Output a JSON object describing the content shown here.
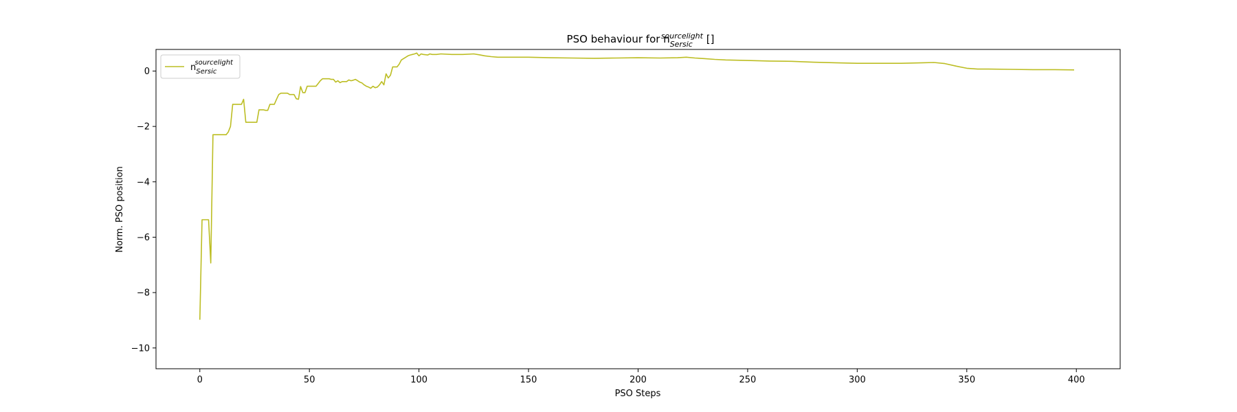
{
  "chart_data": {
    "type": "line",
    "title": {
      "prefix": "PSO behaviour for n",
      "superscript": "sourcelight",
      "subscript": "Sersic",
      "suffix": " []"
    },
    "xlabel": "PSO Steps",
    "ylabel": "Norm. PSO position",
    "xlim": [
      -20,
      420
    ],
    "ylim": [
      -10.75,
      0.78
    ],
    "xticks": [
      0,
      50,
      100,
      150,
      200,
      250,
      300,
      350,
      400
    ],
    "yticks": [
      0,
      -2,
      -4,
      -6,
      -8,
      -10
    ],
    "ytick_labels": [
      "0",
      "−2",
      "−4",
      "−6",
      "−8",
      "−10"
    ],
    "grid": false,
    "legend_position": "upper-left",
    "series": [
      {
        "name": "n",
        "name_superscript": "sourcelight",
        "name_subscript": "Sersic",
        "color": "#bcbd22",
        "points": [
          [
            0,
            -8.98
          ],
          [
            1,
            -5.37
          ],
          [
            2,
            -5.37
          ],
          [
            3,
            -5.37
          ],
          [
            4,
            -5.37
          ],
          [
            5,
            -6.93
          ],
          [
            6,
            -2.3
          ],
          [
            7,
            -2.3
          ],
          [
            8,
            -2.3
          ],
          [
            9,
            -2.3
          ],
          [
            10,
            -2.3
          ],
          [
            11,
            -2.3
          ],
          [
            12,
            -2.3
          ],
          [
            13,
            -2.2
          ],
          [
            14,
            -2.0
          ],
          [
            15,
            -1.2
          ],
          [
            16,
            -1.2
          ],
          [
            17,
            -1.2
          ],
          [
            18,
            -1.2
          ],
          [
            19,
            -1.2
          ],
          [
            20,
            -1.02
          ],
          [
            21,
            -1.85
          ],
          [
            22,
            -1.85
          ],
          [
            23,
            -1.85
          ],
          [
            24,
            -1.85
          ],
          [
            25,
            -1.85
          ],
          [
            26,
            -1.85
          ],
          [
            27,
            -1.4
          ],
          [
            28,
            -1.4
          ],
          [
            29,
            -1.4
          ],
          [
            30,
            -1.42
          ],
          [
            31,
            -1.42
          ],
          [
            32,
            -1.2
          ],
          [
            33,
            -1.2
          ],
          [
            34,
            -1.2
          ],
          [
            35,
            -1.02
          ],
          [
            36,
            -0.85
          ],
          [
            37,
            -0.8
          ],
          [
            38,
            -0.8
          ],
          [
            39,
            -0.8
          ],
          [
            40,
            -0.8
          ],
          [
            41,
            -0.85
          ],
          [
            42,
            -0.85
          ],
          [
            43,
            -0.85
          ],
          [
            44,
            -1.0
          ],
          [
            45,
            -1.02
          ],
          [
            46,
            -0.56
          ],
          [
            47,
            -0.78
          ],
          [
            48,
            -0.78
          ],
          [
            49,
            -0.55
          ],
          [
            50,
            -0.55
          ],
          [
            51,
            -0.55
          ],
          [
            52,
            -0.55
          ],
          [
            53,
            -0.55
          ],
          [
            54,
            -0.45
          ],
          [
            55,
            -0.35
          ],
          [
            56,
            -0.28
          ],
          [
            57,
            -0.28
          ],
          [
            58,
            -0.28
          ],
          [
            59,
            -0.28
          ],
          [
            60,
            -0.3
          ],
          [
            61,
            -0.3
          ],
          [
            62,
            -0.4
          ],
          [
            63,
            -0.35
          ],
          [
            64,
            -0.42
          ],
          [
            65,
            -0.38
          ],
          [
            66,
            -0.38
          ],
          [
            67,
            -0.38
          ],
          [
            68,
            -0.32
          ],
          [
            69,
            -0.35
          ],
          [
            70,
            -0.33
          ],
          [
            71,
            -0.3
          ],
          [
            72,
            -0.35
          ],
          [
            73,
            -0.4
          ],
          [
            74,
            -0.43
          ],
          [
            75,
            -0.5
          ],
          [
            76,
            -0.55
          ],
          [
            77,
            -0.58
          ],
          [
            78,
            -0.62
          ],
          [
            79,
            -0.55
          ],
          [
            80,
            -0.6
          ],
          [
            81,
            -0.58
          ],
          [
            82,
            -0.5
          ],
          [
            83,
            -0.38
          ],
          [
            84,
            -0.5
          ],
          [
            85,
            -0.1
          ],
          [
            86,
            -0.25
          ],
          [
            87,
            -0.15
          ],
          [
            88,
            0.15
          ],
          [
            89,
            0.15
          ],
          [
            90,
            0.15
          ],
          [
            91,
            0.25
          ],
          [
            92,
            0.4
          ],
          [
            93,
            0.45
          ],
          [
            94,
            0.5
          ],
          [
            95,
            0.55
          ],
          [
            96,
            0.58
          ],
          [
            97,
            0.6
          ],
          [
            98,
            0.62
          ],
          [
            99,
            0.65
          ],
          [
            100,
            0.55
          ],
          [
            101,
            0.62
          ],
          [
            102,
            0.6
          ],
          [
            104,
            0.58
          ],
          [
            105,
            0.62
          ],
          [
            106,
            0.6
          ],
          [
            108,
            0.6
          ],
          [
            110,
            0.62
          ],
          [
            115,
            0.6
          ],
          [
            120,
            0.6
          ],
          [
            125,
            0.62
          ],
          [
            128,
            0.58
          ],
          [
            130,
            0.55
          ],
          [
            133,
            0.52
          ],
          [
            136,
            0.5
          ],
          [
            140,
            0.5
          ],
          [
            150,
            0.5
          ],
          [
            160,
            0.48
          ],
          [
            170,
            0.47
          ],
          [
            180,
            0.46
          ],
          [
            190,
            0.47
          ],
          [
            200,
            0.48
          ],
          [
            210,
            0.47
          ],
          [
            218,
            0.48
          ],
          [
            222,
            0.5
          ],
          [
            226,
            0.47
          ],
          [
            230,
            0.45
          ],
          [
            235,
            0.42
          ],
          [
            240,
            0.4
          ],
          [
            250,
            0.38
          ],
          [
            260,
            0.36
          ],
          [
            270,
            0.35
          ],
          [
            280,
            0.32
          ],
          [
            290,
            0.3
          ],
          [
            300,
            0.28
          ],
          [
            310,
            0.28
          ],
          [
            320,
            0.28
          ],
          [
            330,
            0.3
          ],
          [
            335,
            0.31
          ],
          [
            340,
            0.27
          ],
          [
            345,
            0.18
          ],
          [
            350,
            0.1
          ],
          [
            355,
            0.07
          ],
          [
            360,
            0.07
          ],
          [
            370,
            0.06
          ],
          [
            380,
            0.05
          ],
          [
            390,
            0.05
          ],
          [
            399,
            0.04
          ]
        ]
      }
    ]
  }
}
